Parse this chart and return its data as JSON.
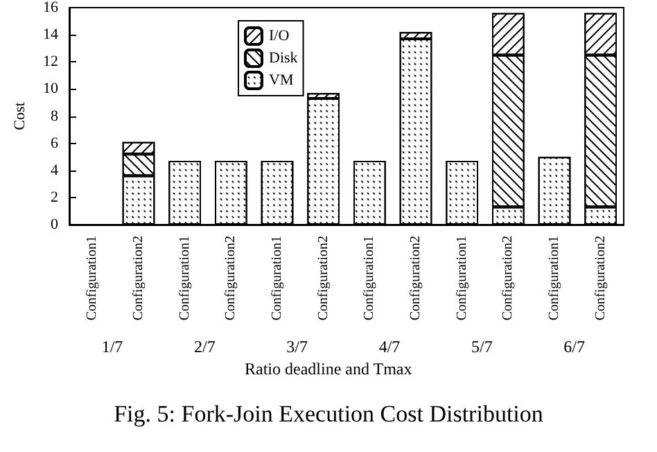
{
  "chart_data": {
    "type": "bar",
    "title": "Fig. 5: Fork-Join Execution Cost Distribution",
    "xlabel": "Ratio deadline and Tmax",
    "ylabel": "Cost",
    "categories": [
      "Configuration1",
      "Configuration2",
      "Configuration1",
      "Configuration2",
      "Configuration1",
      "Configuration2",
      "Configuration1",
      "Configuration2",
      "Configuration1",
      "Configuration2",
      "Configuration1",
      "Configuration2"
    ],
    "annotations": [
      "1/7",
      "2/7",
      "3/7",
      "4/7",
      "5/7",
      "6/7"
    ],
    "stacked": true,
    "series": [
      {
        "name": "VM",
        "color": "#ffffff",
        "values": [
          0,
          3.6,
          4.7,
          4.7,
          4.7,
          9.3,
          4.7,
          13.7,
          4.7,
          1.3,
          5.0,
          1.3
        ]
      },
      {
        "name": "Disk",
        "color": "#ffffff",
        "values": [
          0,
          1.6,
          0,
          0,
          0,
          0,
          0,
          0,
          0,
          11.2,
          0,
          11.2
        ]
      },
      {
        "name": "I/O",
        "color": "#ffffff",
        "values": [
          0,
          0.9,
          0,
          0,
          0,
          0.4,
          0,
          0.5,
          0,
          3.1,
          0,
          3.1
        ]
      }
    ],
    "ylim": [
      0,
      16
    ],
    "yticks": [
      0,
      2,
      4,
      6,
      8,
      10,
      12,
      14,
      16
    ],
    "grid": false,
    "legend": "top"
  }
}
